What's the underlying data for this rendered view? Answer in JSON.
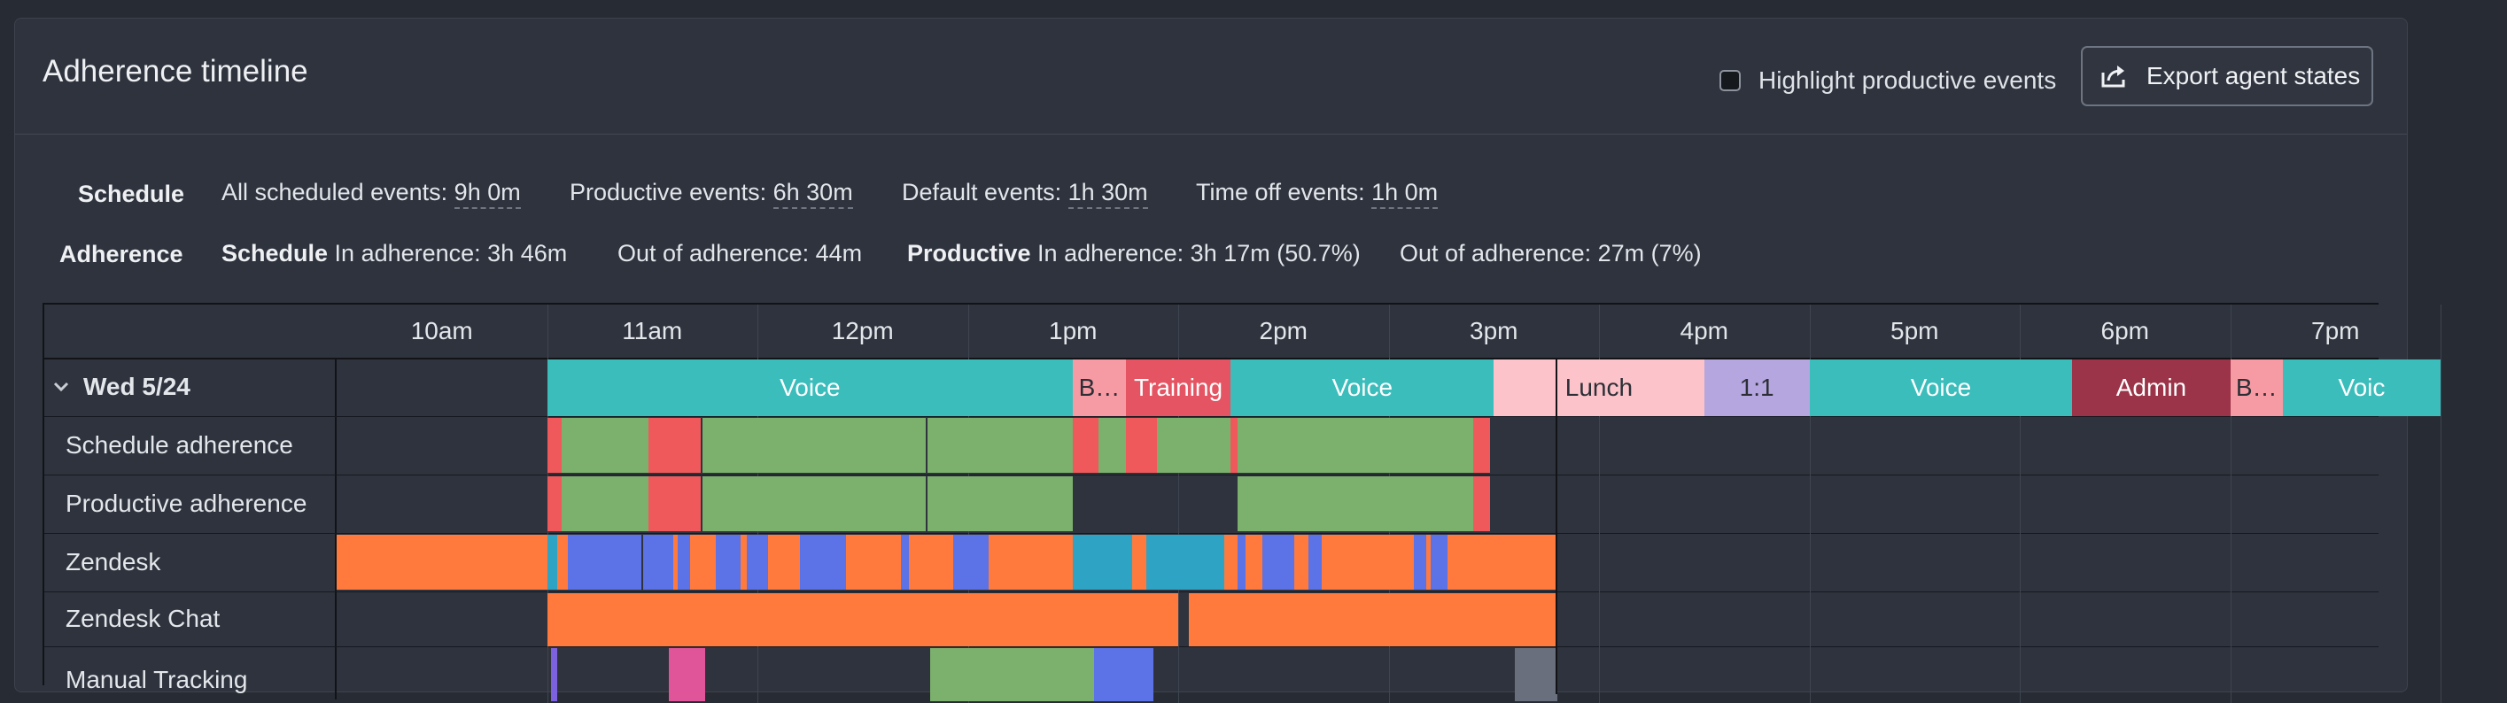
{
  "header": {
    "title": "Adherence timeline",
    "highlight_label": "Highlight productive events",
    "export_label": "Export agent states"
  },
  "schedule": {
    "label": "Schedule",
    "all_label": "All scheduled events: ",
    "all_value": "9h 0m",
    "productive_label": "Productive events: ",
    "productive_value": "6h 30m",
    "default_label": "Default events: ",
    "default_value": "1h 30m",
    "timeoff_label": "Time off events: ",
    "timeoff_value": "1h 0m"
  },
  "adherence": {
    "label": "Adherence",
    "schedule_bold": "Schedule",
    "schedule_in": " In adherence: 3h 46m",
    "schedule_out": "Out of adherence: 44m",
    "productive_bold": "Productive",
    "productive_in": " In adherence: 3h 17m (50.7%)",
    "productive_out": "Out of adherence: 27m (7%)"
  },
  "timeline": {
    "ticks": [
      "10am",
      "11am",
      "12pm",
      "1pm",
      "2pm",
      "3pm",
      "4pm",
      "5pm",
      "6pm",
      "7pm"
    ],
    "day_label": "Wed 5/24",
    "rows": [
      "Schedule adherence",
      "Productive adherence",
      "Zendesk",
      "Zendesk Chat",
      "Manual Tracking"
    ],
    "events": [
      {
        "label": "Voice",
        "start": 0,
        "end": 2.5,
        "color": "#3bbdbc"
      },
      {
        "label": "B…",
        "start": 2.5,
        "end": 2.75,
        "color": "#f69aa3"
      },
      {
        "label": "Training",
        "start": 2.75,
        "end": 3.25,
        "color": "#e55462"
      },
      {
        "label": "Voice",
        "start": 3.25,
        "end": 4.5,
        "color": "#3bbdbc"
      },
      {
        "label": "",
        "start": 4.5,
        "end": 4.78,
        "color": "#fcc4ca"
      },
      {
        "label": "Lunch",
        "start": 4.78,
        "end": 5.5,
        "color": "#fcc4ca"
      },
      {
        "label": "1:1",
        "start": 5.5,
        "end": 6.0,
        "color": "#b5a6e0"
      },
      {
        "label": "Voice",
        "start": 6.0,
        "end": 7.25,
        "color": "#3bbdbc"
      },
      {
        "label": "Admin",
        "start": 7.25,
        "end": 8.0,
        "color": "#9b3448"
      },
      {
        "label": "B…",
        "start": 8.0,
        "end": 8.25,
        "color": "#f69aa3"
      },
      {
        "label": "Voic",
        "start": 8.25,
        "end": 9.0,
        "color": "#3bbdbc"
      }
    ],
    "colors": {
      "in_adherence": "#7cb06d",
      "out_adherence": "#f0595b",
      "zendesk_orange": "#ff7a3c",
      "zendesk_blue": "#5b73e6",
      "zendesk_teal": "#2fa3c4",
      "manual_purple": "#7d62e0",
      "manual_pink": "#e0559a",
      "manual_gray": "#6a6f7d"
    }
  }
}
